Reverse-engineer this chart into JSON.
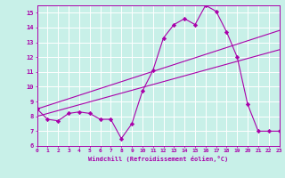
{
  "x_ticks": [
    0,
    1,
    2,
    3,
    4,
    5,
    6,
    7,
    8,
    9,
    10,
    11,
    12,
    13,
    14,
    15,
    16,
    17,
    18,
    19,
    20,
    21,
    22,
    23
  ],
  "line1": {
    "x": [
      0,
      1,
      2,
      3,
      4,
      5,
      6,
      7,
      8,
      9,
      10,
      11,
      12,
      13,
      14,
      15,
      16,
      17,
      18,
      19,
      20,
      21,
      22,
      23
    ],
    "y": [
      8.5,
      7.8,
      7.7,
      8.2,
      8.3,
      8.2,
      7.8,
      7.8,
      6.5,
      7.5,
      9.7,
      11.1,
      13.3,
      14.2,
      14.6,
      14.2,
      15.5,
      15.1,
      13.7,
      12.0,
      8.8,
      7.0,
      7.0,
      7.0
    ],
    "color": "#aa00aa",
    "marker": "D",
    "markersize": 2.2,
    "linewidth": 0.8
  },
  "line2": {
    "x": [
      0,
      23
    ],
    "y": [
      8.0,
      12.5
    ],
    "color": "#aa00aa",
    "linewidth": 0.8
  },
  "line3": {
    "x": [
      0,
      23
    ],
    "y": [
      8.5,
      13.8
    ],
    "color": "#aa00aa",
    "linewidth": 0.8
  },
  "ylim": [
    6,
    15.5
  ],
  "yticks": [
    6,
    7,
    8,
    9,
    10,
    11,
    12,
    13,
    14,
    15
  ],
  "xlim": [
    0,
    23
  ],
  "xlabel": "Windchill (Refroidissement éolien,°C)",
  "background_color": "#c8f0e8",
  "grid_color": "#ffffff",
  "spine_color": "#aa00aa",
  "label_color": "#aa00aa"
}
